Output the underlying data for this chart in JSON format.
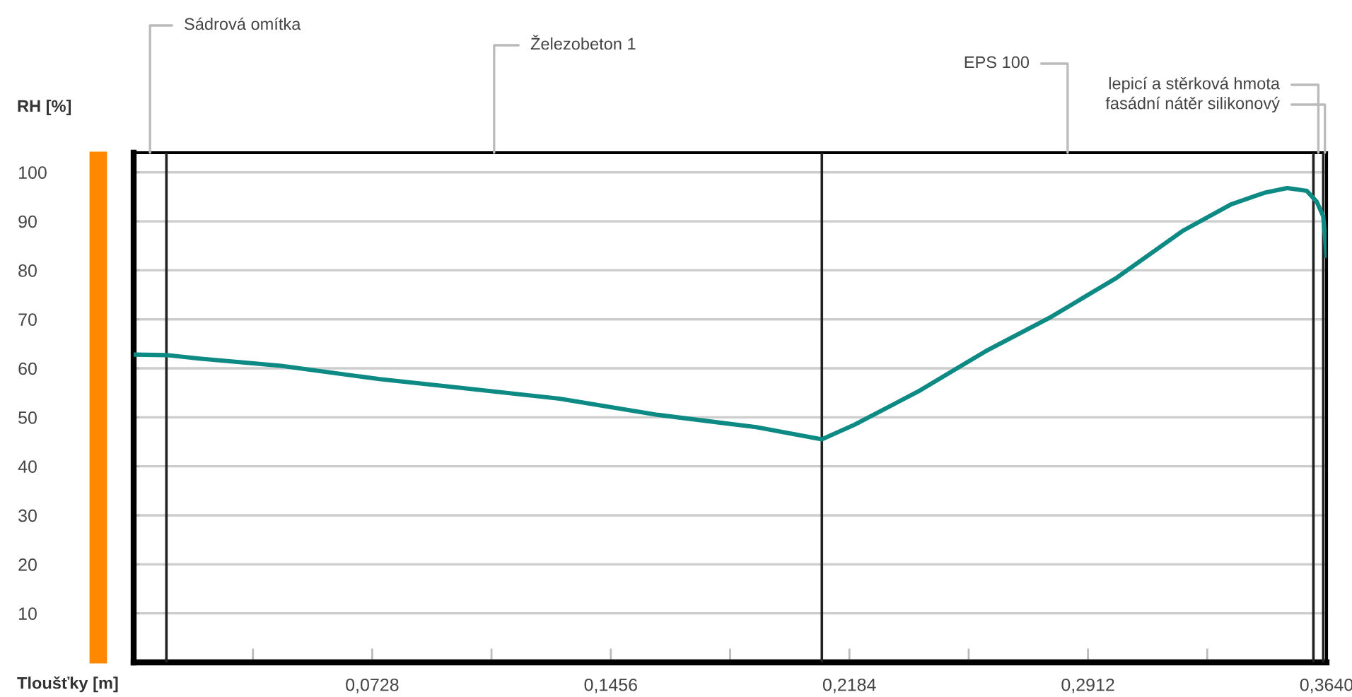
{
  "chart_data": {
    "type": "line",
    "xlabel": "Tloušťky [m]",
    "ylabel": "RH [%]",
    "x": [
      0,
      0.01,
      0.02,
      0.045,
      0.075,
      0.1,
      0.13,
      0.16,
      0.19,
      0.21,
      0.22,
      0.24,
      0.26,
      0.28,
      0.3,
      0.32,
      0.335,
      0.345,
      0.352,
      0.358,
      0.361,
      0.363,
      0.364
    ],
    "series": [
      {
        "color": "#0e8a84",
        "values": [
          62.8,
          62.7,
          62,
          60.5,
          57.8,
          56,
          53.8,
          50.5,
          48,
          45.5,
          48.5,
          55.5,
          63.5,
          70.5,
          78.5,
          88,
          93.5,
          95.8,
          96.8,
          96.2,
          94,
          91,
          83
        ]
      }
    ],
    "xlim": [
      0,
      0.364
    ],
    "ylim": [
      0,
      104
    ],
    "xticks": [
      {
        "value": 0.0364,
        "label": null
      },
      {
        "value": 0.0728,
        "label": "0,0728"
      },
      {
        "value": 0.1092,
        "label": null
      },
      {
        "value": 0.1456,
        "label": "0,1456"
      },
      {
        "value": 0.182,
        "label": null
      },
      {
        "value": 0.2184,
        "label": "0,2184"
      },
      {
        "value": 0.2548,
        "label": null
      },
      {
        "value": 0.2912,
        "label": "0,2912"
      },
      {
        "value": 0.3276,
        "label": null
      },
      {
        "value": 0.364,
        "label": "0,3640"
      }
    ],
    "yticks": [
      10,
      20,
      30,
      40,
      50,
      60,
      70,
      80,
      90,
      100
    ],
    "grid": "y",
    "marker": "none",
    "line_style": "solid",
    "ref_lines": [
      {
        "axis": "x",
        "value": 0.01,
        "color": "#222222"
      },
      {
        "axis": "x",
        "value": 0.21,
        "color": "#222222"
      },
      {
        "axis": "x",
        "value": 0.36,
        "color": "#222222"
      },
      {
        "axis": "x",
        "value": 0.363,
        "color": "#222222"
      }
    ],
    "annotations": [
      "Sádrová omítka",
      "Železobeton 1",
      "EPS 100",
      {
        "text": "lepicí a stěrková hmota",
        "x": 0.3615,
        "y": 104
      },
      {
        "text": "fasádní nátěr silikonový",
        "x": 0.3635,
        "y": 104
      }
    ]
  }
}
